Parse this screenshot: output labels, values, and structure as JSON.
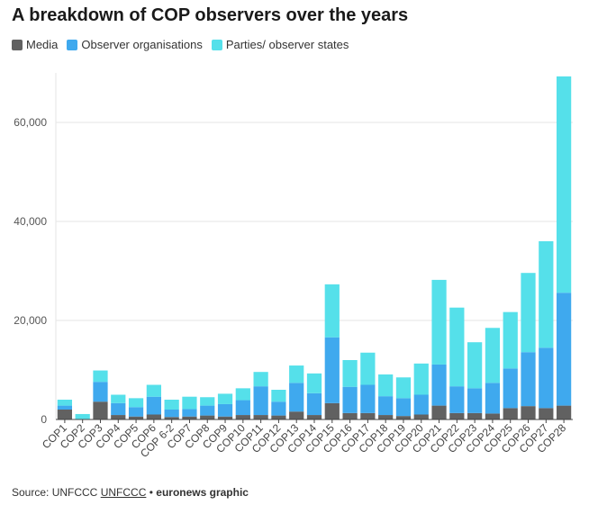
{
  "title": "A breakdown of COP observers over the years",
  "colors": {
    "media": "#616161",
    "observer_organisations": "#3fa9ee",
    "parties_observer_states": "#55e0ea",
    "gridline": "#e6e6e6",
    "axis": "#444444"
  },
  "footer": {
    "source_label": "Source: UNFCCC",
    "source_link": "UNFCCC",
    "separator": "•",
    "credit": "euronews graphic"
  },
  "chart_data": {
    "type": "bar",
    "stacked": true,
    "title": "A breakdown of COP observers over the years",
    "xlabel": "",
    "ylabel": "",
    "ylim": [
      0,
      70000
    ],
    "yticks": [
      0,
      20000,
      40000,
      60000
    ],
    "ytick_labels": [
      "0",
      "20,000",
      "40,000",
      "60,000"
    ],
    "grid": true,
    "legend_position": "top-left",
    "categories": [
      "COP1",
      "COP2",
      "COP3",
      "COP4",
      "COP5",
      "COP6",
      "COP 6-2",
      "COP7",
      "COP8",
      "COP9",
      "COP10",
      "COP11",
      "COP12",
      "COP13",
      "COP14",
      "COP15",
      "COP16",
      "COP17",
      "COP18",
      "COP19",
      "COP20",
      "COP21",
      "COP22",
      "COP23",
      "COP24",
      "COP25",
      "COP26",
      "COP27",
      "COP28"
    ],
    "series": [
      {
        "name": "Media",
        "color": "#616161",
        "values": [
          2000,
          100,
          3600,
          900,
          600,
          1000,
          500,
          600,
          800,
          600,
          900,
          900,
          800,
          1600,
          900,
          3300,
          1300,
          1300,
          900,
          700,
          1000,
          2800,
          1300,
          1300,
          1200,
          2300,
          2700,
          2300,
          2800
        ]
      },
      {
        "name": "Observer organisations",
        "color": "#3fa9ee",
        "values": [
          800,
          0,
          4000,
          2400,
          1900,
          3600,
          1500,
          1500,
          2000,
          2500,
          3000,
          5800,
          2800,
          5800,
          4400,
          13300,
          5300,
          5700,
          3800,
          3600,
          4000,
          8300,
          5400,
          5000,
          6200,
          8000,
          10900,
          12200,
          22800
        ]
      },
      {
        "name": "Parties/ observer states",
        "color": "#55e0ea",
        "values": [
          1200,
          1000,
          2300,
          1700,
          1800,
          2400,
          2000,
          2500,
          1700,
          2100,
          2400,
          2900,
          2400,
          3500,
          4000,
          10700,
          5400,
          6500,
          4400,
          4200,
          6300,
          17100,
          15900,
          9300,
          11100,
          11400,
          16000,
          21500,
          43700
        ]
      }
    ]
  }
}
